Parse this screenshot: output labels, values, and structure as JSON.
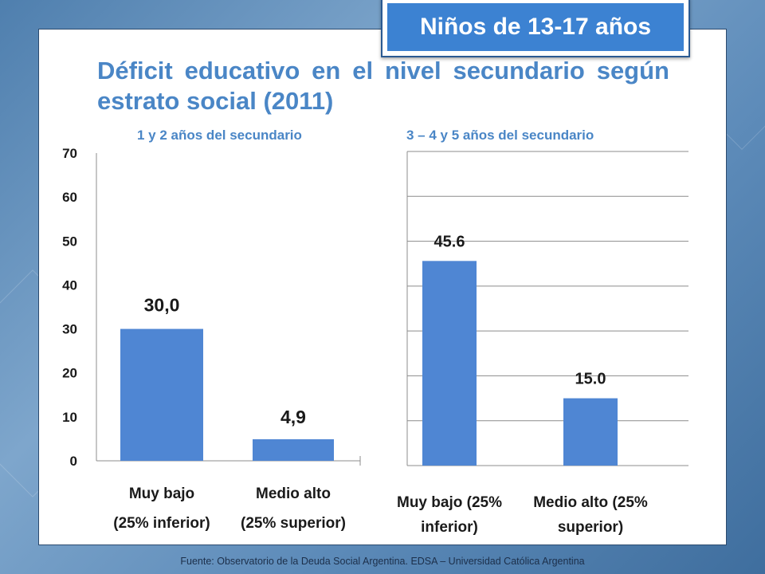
{
  "badge": "Niños de 13-17 años",
  "title": "Déficit educativo en el nivel secundario según estrato social (2011)",
  "source": "Fuente:  Observatorio de  la Deuda Social Argentina. EDSA  – Universidad Católica Argentina",
  "colors": {
    "bar": "#4f86d3",
    "accent": "#4a86c6",
    "badge": "#3c82d2"
  },
  "chart_data": [
    {
      "type": "bar",
      "title": "1 y 2 años del secundario",
      "categories": [
        [
          "Muy bajo",
          "(25% inferior)"
        ],
        [
          "Medio alto",
          "(25% superior)"
        ]
      ],
      "values": [
        30.0,
        4.9
      ],
      "value_labels": [
        "30,0",
        "4,9"
      ],
      "ylim": [
        0,
        70
      ],
      "yticks": [
        0,
        10,
        20,
        30,
        40,
        50,
        60,
        70
      ],
      "grid": false
    },
    {
      "type": "bar",
      "title": "3 – 4 y 5 años del secundario",
      "categories": [
        [
          "Muy bajo (25%",
          "inferior)"
        ],
        [
          "Medio alto (25%",
          "superior)"
        ]
      ],
      "values": [
        45.6,
        15.0
      ],
      "value_labels": [
        "45.6",
        "15.0"
      ],
      "ylim": [
        0,
        70
      ],
      "yticks": [],
      "grid": true
    }
  ]
}
